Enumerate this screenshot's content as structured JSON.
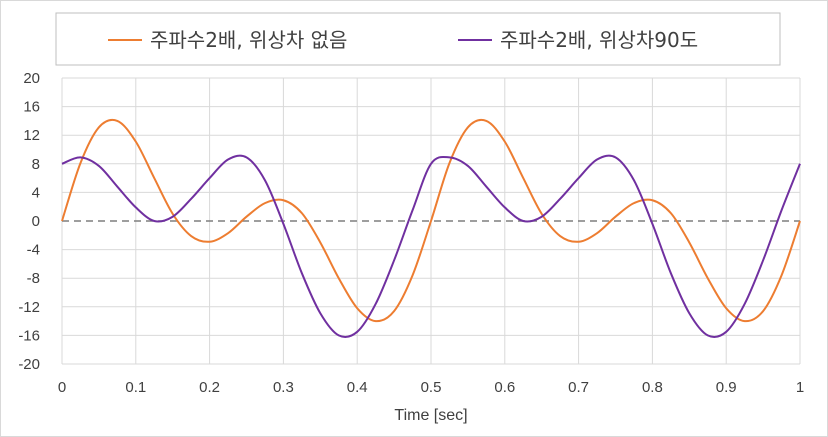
{
  "chart_data": {
    "type": "line",
    "title": "",
    "xlabel": "Time [sec]",
    "ylabel": "",
    "xlim": [
      0,
      1
    ],
    "ylim": [
      -20,
      20
    ],
    "xticks": [
      "0",
      "0.1",
      "0.2",
      "0.3",
      "0.4",
      "0.5",
      "0.6",
      "0.7",
      "0.8",
      "0.9",
      "1"
    ],
    "yticks": [
      "20",
      "16",
      "12",
      "8",
      "4",
      "0",
      "-4",
      "-8",
      "-12",
      "-16",
      "-20"
    ],
    "grid": true,
    "legend_position": "top",
    "zero_line": "dashed",
    "x": [
      0,
      0.025,
      0.05,
      0.075,
      0.1,
      0.125,
      0.15,
      0.175,
      0.2,
      0.225,
      0.25,
      0.275,
      0.3,
      0.325,
      0.35,
      0.375,
      0.4,
      0.425,
      0.45,
      0.475,
      0.5,
      0.525,
      0.55,
      0.575,
      0.6,
      0.625,
      0.65,
      0.675,
      0.7,
      0.725,
      0.75,
      0.775,
      0.8,
      0.825,
      0.85,
      0.875,
      0.9,
      0.925,
      0.95,
      0.975,
      1
    ],
    "series": [
      {
        "name": "주파수2배, 위상차 없음",
        "color": "#ed7d31",
        "values": [
          0,
          8.1,
          13.1,
          14.0,
          11.1,
          6.0,
          1.0,
          -2.1,
          -2.9,
          -1.7,
          0.6,
          2.5,
          2.9,
          1.1,
          -3.0,
          -8.0,
          -12.2,
          -14.0,
          -12.6,
          -7.6,
          0,
          8.1,
          13.1,
          14.0,
          11.1,
          6.0,
          1.0,
          -2.1,
          -2.9,
          -1.7,
          0.6,
          2.5,
          2.9,
          1.1,
          -3.0,
          -8.0,
          -12.2,
          -14.0,
          -12.6,
          -7.6,
          0
        ]
      },
      {
        "name": "주파수2배, 위상차90도",
        "color": "#7030a0",
        "values": [
          8,
          8.9,
          7.7,
          4.8,
          1.9,
          0,
          0.6,
          3.1,
          6.0,
          8.6,
          8.9,
          5.7,
          -0.4,
          -7.3,
          -12.9,
          -16.0,
          -15.5,
          -11.6,
          -5.5,
          1.5,
          8,
          8.9,
          7.7,
          4.8,
          1.9,
          0,
          0.6,
          3.1,
          6.0,
          8.6,
          8.9,
          5.7,
          -0.4,
          -7.3,
          -12.9,
          -16.0,
          -15.5,
          -11.6,
          -5.5,
          1.5,
          8
        ]
      }
    ]
  }
}
